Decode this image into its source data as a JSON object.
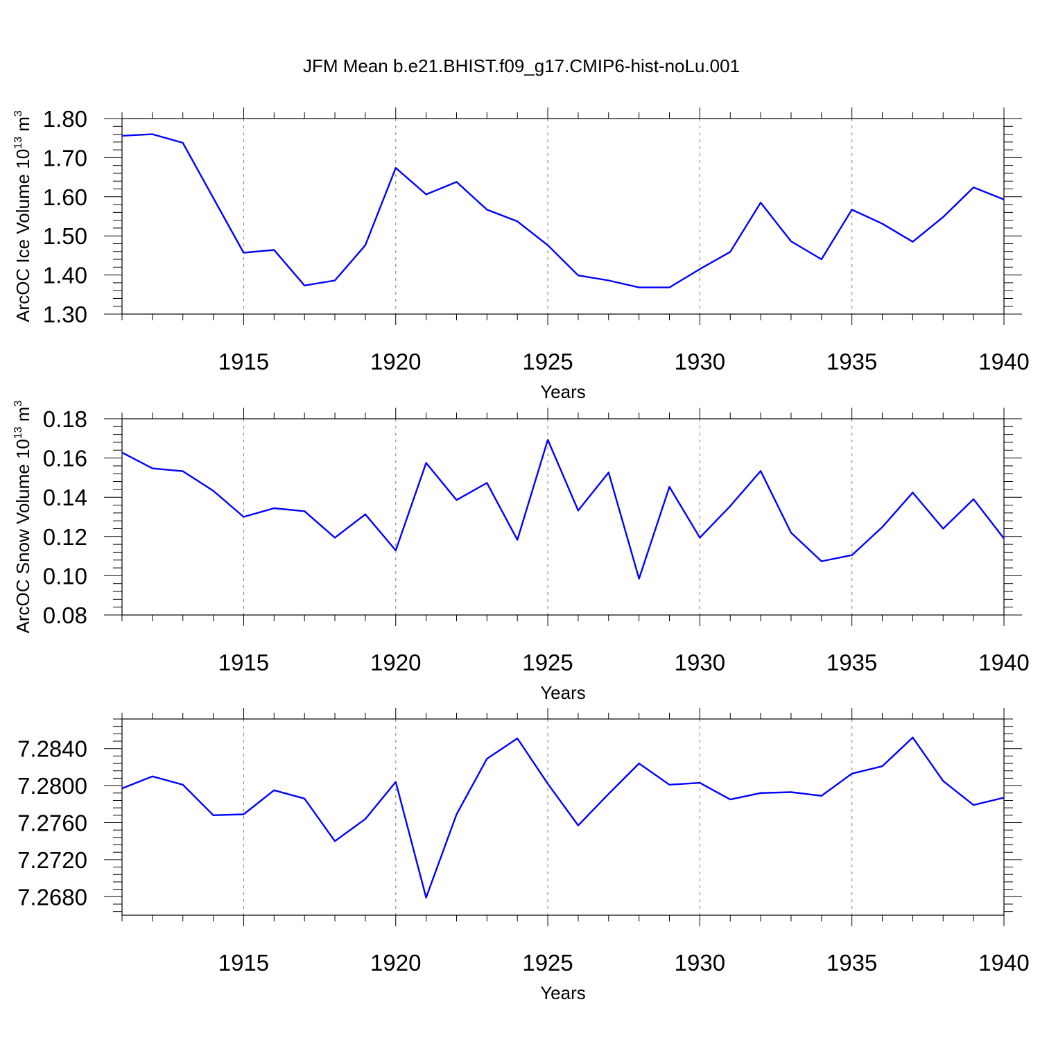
{
  "title": "JFM Mean b.e21.BHIST.f09_g17.CMIP6-hist-noLu.001",
  "colors": {
    "line": "#0000ff",
    "axis": "#000000",
    "grid": "#8c8c8c"
  },
  "chart_data": [
    {
      "type": "line",
      "ylabel": "ArcOC Ice Volume 10",
      "ylabel_exp": "13",
      "ylabel_unit": " m",
      "ylabel_unit_exp": "3",
      "xlabel": "Years",
      "xlim": [
        1911,
        1940
      ],
      "ylim": [
        1.3,
        1.8
      ],
      "grid_x": true,
      "xticks": [
        1915,
        1920,
        1925,
        1930,
        1935,
        1940
      ],
      "yticks": [
        "1.30",
        "1.40",
        "1.50",
        "1.60",
        "1.70",
        "1.80"
      ],
      "series": [
        {
          "x": [
            1911,
            1912,
            1913,
            1914,
            1915,
            1916,
            1917,
            1918,
            1919,
            1920,
            1921,
            1922,
            1923,
            1924,
            1925,
            1926,
            1927,
            1928,
            1929,
            1930,
            1931,
            1932,
            1933,
            1934,
            1935,
            1936,
            1937,
            1938,
            1939,
            1940
          ],
          "values": [
            1.756,
            1.76,
            1.738,
            1.597,
            1.457,
            1.464,
            1.373,
            1.386,
            1.476,
            1.674,
            1.606,
            1.638,
            1.567,
            1.537,
            1.476,
            1.399,
            1.386,
            1.368,
            1.368,
            1.415,
            1.459,
            1.585,
            1.486,
            1.44,
            1.567,
            1.531,
            1.485,
            1.548,
            1.624,
            1.593
          ]
        }
      ]
    },
    {
      "type": "line",
      "ylabel": "ArcOC Snow Volume 10",
      "ylabel_exp": "13",
      "ylabel_unit": " m",
      "ylabel_unit_exp": "3",
      "xlabel": "Years",
      "xlim": [
        1911,
        1940
      ],
      "ylim": [
        0.08,
        0.18
      ],
      "grid_x": true,
      "xticks": [
        1915,
        1920,
        1925,
        1930,
        1935,
        1940
      ],
      "yticks": [
        "0.08",
        "0.10",
        "0.12",
        "0.14",
        "0.16",
        "0.18"
      ],
      "series": [
        {
          "x": [
            1911,
            1912,
            1913,
            1914,
            1915,
            1916,
            1917,
            1918,
            1919,
            1920,
            1921,
            1922,
            1923,
            1924,
            1925,
            1926,
            1927,
            1928,
            1929,
            1930,
            1931,
            1932,
            1933,
            1934,
            1935,
            1936,
            1937,
            1938,
            1939,
            1940
          ],
          "values": [
            0.1628,
            0.1547,
            0.1533,
            0.1433,
            0.13,
            0.1344,
            0.1329,
            0.1194,
            0.1313,
            0.1129,
            0.1575,
            0.1386,
            0.1473,
            0.1183,
            0.1693,
            0.1332,
            0.1526,
            0.0985,
            0.1453,
            0.1194,
            0.1355,
            0.1534,
            0.1219,
            0.1074,
            0.1105,
            0.1248,
            0.1424,
            0.124,
            0.139,
            0.119
          ]
        }
      ]
    },
    {
      "type": "line",
      "ylabel": "",
      "xlabel": "Years",
      "xlim": [
        1911,
        1940
      ],
      "ylim": [
        7.266,
        7.2872
      ],
      "grid_x": true,
      "xticks": [
        1915,
        1920,
        1925,
        1930,
        1935,
        1940
      ],
      "yticks": [
        "7.2680",
        "7.2720",
        "7.2760",
        "7.2800",
        "7.2840"
      ],
      "series": [
        {
          "x": [
            1911,
            1912,
            1913,
            1914,
            1915,
            1916,
            1917,
            1918,
            1919,
            1920,
            1921,
            1922,
            1923,
            1924,
            1925,
            1926,
            1927,
            1928,
            1929,
            1930,
            1931,
            1932,
            1933,
            1934,
            1935,
            1936,
            1937,
            1938,
            1939,
            1940
          ],
          "values": [
            7.2797,
            7.281,
            7.2801,
            7.2768,
            7.2769,
            7.2795,
            7.2786,
            7.274,
            7.2764,
            7.2804,
            7.2679,
            7.2769,
            7.2829,
            7.2851,
            7.2802,
            7.2757,
            7.2791,
            7.2824,
            7.2801,
            7.2803,
            7.2785,
            7.2792,
            7.2793,
            7.2789,
            7.2813,
            7.2821,
            7.2852,
            7.2805,
            7.2779,
            7.2787
          ]
        }
      ]
    }
  ]
}
